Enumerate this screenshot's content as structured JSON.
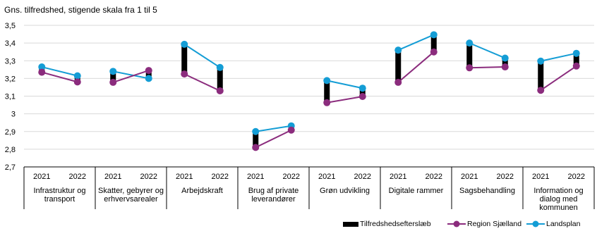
{
  "chart_data": {
    "type": "line",
    "title": "Gns. tilfredshed, stigende skala fra 1 til 5",
    "ylim": [
      2.7,
      3.5
    ],
    "yticks": [
      "2,7",
      "2,8",
      "2,9",
      "3",
      "3,1",
      "3,2",
      "3,3",
      "3,4",
      "3,5"
    ],
    "ytick_values": [
      2.7,
      2.8,
      2.9,
      3.0,
      3.1,
      3.2,
      3.3,
      3.4,
      3.5
    ],
    "years": [
      "2021",
      "2022"
    ],
    "groups": [
      {
        "label": [
          "Infrastruktur og",
          "transport"
        ],
        "region": [
          3.235,
          3.18
        ],
        "landsplan": [
          3.265,
          3.215
        ]
      },
      {
        "label": [
          "Skatter, gebyrer og",
          "erhvervsarealer"
        ],
        "region": [
          3.178,
          3.245
        ],
        "landsplan": [
          3.24,
          3.2
        ]
      },
      {
        "label": [
          "Arbejdskraft"
        ],
        "region": [
          3.225,
          3.13
        ],
        "landsplan": [
          3.393,
          3.262
        ]
      },
      {
        "label": [
          "Brug af private",
          "leverandører"
        ],
        "region": [
          2.81,
          2.908
        ],
        "landsplan": [
          2.9,
          2.932
        ]
      },
      {
        "label": [
          "Grøn udvikling"
        ],
        "region": [
          3.063,
          3.098
        ],
        "landsplan": [
          3.188,
          3.145
        ]
      },
      {
        "label": [
          "Digitale rammer"
        ],
        "region": [
          3.178,
          3.35
        ],
        "landsplan": [
          3.36,
          3.447
        ]
      },
      {
        "label": [
          "Sagsbehandling"
        ],
        "region": [
          3.26,
          3.265
        ],
        "landsplan": [
          3.4,
          3.315
        ]
      },
      {
        "label": [
          "Information og",
          "dialog med",
          "kommunen"
        ],
        "region": [
          3.133,
          3.27
        ],
        "landsplan": [
          3.298,
          3.342
        ]
      }
    ],
    "legend": {
      "placement": "bottom-right",
      "items": [
        {
          "name": "Tilfredshedsefterslæb",
          "color": "#000000",
          "kind": "bar"
        },
        {
          "name": "Region Sjælland",
          "color": "#8B2C7D",
          "kind": "line"
        },
        {
          "name": "Landsplan",
          "color": "#149DD5",
          "kind": "line"
        }
      ]
    },
    "grid": "horizontal"
  }
}
